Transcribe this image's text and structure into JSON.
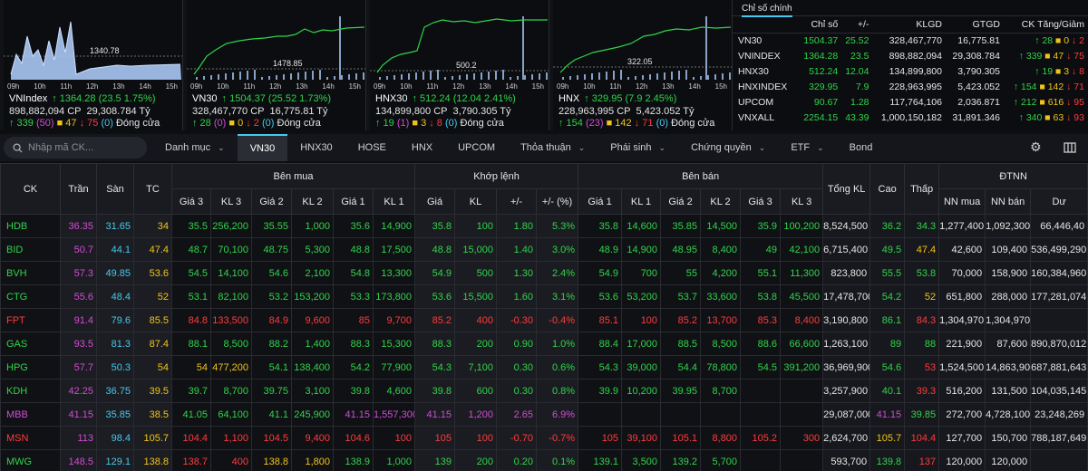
{
  "minis": [
    {
      "name": "VNIndex",
      "price": "1364.28",
      "chg": "(23.5",
      "pct": "1.75%)",
      "vol": "898,882,094 CP",
      "val": "29,308.784 Tỷ",
      "up": "339",
      "ref": "47",
      "down": "75",
      "ceil": "50",
      "mark": "1340.78",
      "times": [
        "09h",
        "10h",
        "11h",
        "12h",
        "13h",
        "14h",
        "15h"
      ],
      "state": "Đóng cửa"
    },
    {
      "name": "VN30",
      "price": "1504.37",
      "chg": "(25.52",
      "pct": "1.73%)",
      "vol": "328,467,770 CP",
      "val": "16,775.81 Tỷ",
      "up": "28",
      "ref": "0",
      "down": "2",
      "ceil": "0",
      "mark": "1478.85",
      "times": [
        "09h",
        "10h",
        "11h",
        "12h",
        "13h",
        "14h",
        "15h"
      ],
      "state": "Đóng cửa"
    },
    {
      "name": "HNX30",
      "price": "512.24",
      "chg": "(12.04",
      "pct": "2.41%)",
      "vol": "134,899,800 CP",
      "val": "3,790.305 Tỷ",
      "up": "19",
      "ref": "3",
      "down": "8",
      "ceil": "1",
      "mark": "500.2",
      "times": [
        "09h",
        "10h",
        "11h",
        "12h",
        "13h",
        "14h",
        "15h"
      ],
      "state": "Đóng cửa"
    },
    {
      "name": "HNX",
      "price": "329.95",
      "chg": "(7.9",
      "pct": "2.45%)",
      "vol": "228,963,995 CP",
      "val": "5,423.052 Tỷ",
      "up": "154",
      "ref": "142",
      "down": "71",
      "ceil": "23",
      "mark": "322.05",
      "times": [
        "09h",
        "10h",
        "11h",
        "12h",
        "13h",
        "14h",
        "15h"
      ],
      "state": "Đóng cửa"
    }
  ],
  "indices": {
    "title": "Chỉ số chính",
    "headers": [
      "Chỉ số",
      "+/-",
      "KLGD",
      "GTGD",
      "CK Tăng/Giảm"
    ],
    "rows": [
      {
        "name": "VN30",
        "val": "1504.37",
        "chg": "25.52",
        "vol": "328,467,770",
        "value": "16,775.81",
        "up": "28",
        "ref": "0",
        "down": "2"
      },
      {
        "name": "VNINDEX",
        "val": "1364.28",
        "chg": "23.5",
        "vol": "898,882,094",
        "value": "29,308.784",
        "up": "339",
        "ref": "47",
        "down": "75"
      },
      {
        "name": "HNX30",
        "val": "512.24",
        "chg": "12.04",
        "vol": "134,899,800",
        "value": "3,790.305",
        "up": "19",
        "ref": "3",
        "down": "8"
      },
      {
        "name": "HNXINDEX",
        "val": "329.95",
        "chg": "7.9",
        "vol": "228,963,995",
        "value": "5,423.052",
        "up": "154",
        "ref": "142",
        "down": "71"
      },
      {
        "name": "UPCOM",
        "val": "90.67",
        "chg": "1.28",
        "vol": "117,764,106",
        "value": "2,036.871",
        "up": "212",
        "ref": "616",
        "down": "95"
      },
      {
        "name": "VNXALL",
        "val": "2254.15",
        "chg": "43.39",
        "vol": "1,000,150,182",
        "value": "31,891.346",
        "up": "340",
        "ref": "63",
        "down": "93"
      }
    ]
  },
  "toolbar": {
    "search_placeholder": "Nhập mã CK...",
    "tabs": [
      {
        "label": "Danh mục",
        "dropdown": true
      },
      {
        "label": "VN30",
        "dropdown": false,
        "active": true
      },
      {
        "label": "HNX30",
        "dropdown": false
      },
      {
        "label": "HOSE",
        "dropdown": false
      },
      {
        "label": "HNX",
        "dropdown": false
      },
      {
        "label": "UPCOM",
        "dropdown": false
      },
      {
        "label": "Thỏa thuận",
        "dropdown": true
      },
      {
        "label": "Phái sinh",
        "dropdown": true
      },
      {
        "label": "Chứng quyền",
        "dropdown": true
      },
      {
        "label": "ETF",
        "dropdown": true
      },
      {
        "label": "Bond",
        "dropdown": false
      }
    ]
  },
  "board": {
    "groups": {
      "ck": "CK",
      "ceil": "Trần",
      "floor": "Sàn",
      "ref": "TC",
      "buy": "Bên mua",
      "match": "Khớp lệnh",
      "sell": "Bên bán",
      "total": "Tổng KL",
      "high": "Cao",
      "low": "Thấp",
      "foreign": "ĐTNN"
    },
    "sub": {
      "buy": [
        "Giá 3",
        "KL 3",
        "Giá 2",
        "KL 2",
        "Giá 1",
        "KL 1"
      ],
      "match": [
        "Giá",
        "KL",
        "+/-",
        "+/- (%)"
      ],
      "sell": [
        "Giá 1",
        "KL 1",
        "Giá 2",
        "KL 2",
        "Giá 3",
        "KL 3"
      ],
      "foreign": [
        "NN mua",
        "NN bán",
        "Dư"
      ]
    },
    "colors": {
      "up": "#2fd44a",
      "down": "#ff3b3b",
      "ref": "#f0c419",
      "ceil": "#d24bd6",
      "floor": "#46c8ee"
    },
    "rows": [
      {
        "ck": "HDB",
        "s": "u",
        "ceil": "36.35",
        "floor": "31.65",
        "ref": "34",
        "b3": [
          "35.5",
          "256,200",
          "u"
        ],
        "b2": [
          "35.55",
          "1,000",
          "u"
        ],
        "b1": [
          "35.6",
          "14,900",
          "u"
        ],
        "m": [
          "35.8",
          "100",
          "1.80",
          "5.3%",
          "u"
        ],
        "s1": [
          "35.8",
          "14,600",
          "u"
        ],
        "s2": [
          "35.85",
          "14,500",
          "u"
        ],
        "s3": [
          "35.9",
          "100,200",
          "u"
        ],
        "tot": "8,524,500",
        "hi": [
          "36.2",
          "u"
        ],
        "lo": [
          "34.3",
          "u"
        ],
        "nnb": "1,277,400",
        "nns": "1,092,300",
        "du": "66,446,40"
      },
      {
        "ck": "BID",
        "s": "u",
        "ceil": "50.7",
        "floor": "44.1",
        "ref": "47.4",
        "b3": [
          "48.7",
          "70,100",
          "u"
        ],
        "b2": [
          "48.75",
          "5,300",
          "u"
        ],
        "b1": [
          "48.8",
          "17,500",
          "u"
        ],
        "m": [
          "48.8",
          "15,000",
          "1.40",
          "3.0%",
          "u"
        ],
        "s1": [
          "48.9",
          "14,900",
          "u"
        ],
        "s2": [
          "48.95",
          "8,400",
          "u"
        ],
        "s3": [
          "49",
          "42,100",
          "u"
        ],
        "tot": "6,715,400",
        "hi": [
          "49.5",
          "u"
        ],
        "lo": [
          "47.4",
          "r"
        ],
        "nnb": "42,600",
        "nns": "109,400",
        "du": "536,499,290"
      },
      {
        "ck": "BVH",
        "s": "u",
        "ceil": "57.3",
        "floor": "49.85",
        "ref": "53.6",
        "b3": [
          "54.5",
          "14,100",
          "u"
        ],
        "b2": [
          "54.6",
          "2,100",
          "u"
        ],
        "b1": [
          "54.8",
          "13,300",
          "u"
        ],
        "m": [
          "54.9",
          "500",
          "1.30",
          "2.4%",
          "u"
        ],
        "s1": [
          "54.9",
          "700",
          "u"
        ],
        "s2": [
          "55",
          "4,200",
          "u"
        ],
        "s3": [
          "55.1",
          "11,300",
          "u"
        ],
        "tot": "823,800",
        "hi": [
          "55.5",
          "u"
        ],
        "lo": [
          "53.8",
          "u"
        ],
        "nnb": "70,000",
        "nns": "158,900",
        "du": "160,384,960"
      },
      {
        "ck": "CTG",
        "s": "u",
        "ceil": "55.6",
        "floor": "48.4",
        "ref": "52",
        "b3": [
          "53.1",
          "82,100",
          "u"
        ],
        "b2": [
          "53.2",
          "153,200",
          "u"
        ],
        "b1": [
          "53.3",
          "173,800",
          "u"
        ],
        "m": [
          "53.6",
          "15,500",
          "1.60",
          "3.1%",
          "u"
        ],
        "s1": [
          "53.6",
          "53,200",
          "u"
        ],
        "s2": [
          "53.7",
          "33,600",
          "u"
        ],
        "s3": [
          "53.8",
          "45,500",
          "u"
        ],
        "tot": "17,478,700",
        "hi": [
          "54.2",
          "u"
        ],
        "lo": [
          "52",
          "r"
        ],
        "nnb": "651,800",
        "nns": "288,000",
        "du": "177,281,074"
      },
      {
        "ck": "FPT",
        "s": "d",
        "ceil": "91.4",
        "floor": "79.6",
        "ref": "85.5",
        "b3": [
          "84.8",
          "133,500",
          "d"
        ],
        "b2": [
          "84.9",
          "9,600",
          "d"
        ],
        "b1": [
          "85",
          "9,700",
          "d"
        ],
        "m": [
          "85.2",
          "400",
          "-0.30",
          "-0.4%",
          "d"
        ],
        "s1": [
          "85.1",
          "100",
          "d"
        ],
        "s2": [
          "85.2",
          "13,700",
          "d"
        ],
        "s3": [
          "85.3",
          "8,400",
          "d"
        ],
        "tot": "3,190,800",
        "hi": [
          "86.1",
          "u"
        ],
        "lo": [
          "84.3",
          "d"
        ],
        "nnb": "1,304,970",
        "nns": "1,304,970",
        "du": ""
      },
      {
        "ck": "GAS",
        "s": "u",
        "ceil": "93.5",
        "floor": "81.3",
        "ref": "87.4",
        "b3": [
          "88.1",
          "8,500",
          "u"
        ],
        "b2": [
          "88.2",
          "1,400",
          "u"
        ],
        "b1": [
          "88.3",
          "15,300",
          "u"
        ],
        "m": [
          "88.3",
          "200",
          "0.90",
          "1.0%",
          "u"
        ],
        "s1": [
          "88.4",
          "17,000",
          "u"
        ],
        "s2": [
          "88.5",
          "8,500",
          "u"
        ],
        "s3": [
          "88.6",
          "66,600",
          "u"
        ],
        "tot": "1,263,100",
        "hi": [
          "89",
          "u"
        ],
        "lo": [
          "88",
          "u"
        ],
        "nnb": "221,900",
        "nns": "87,600",
        "du": "890,870,012"
      },
      {
        "ck": "HPG",
        "s": "u",
        "ceil": "57.7",
        "floor": "50.3",
        "ref": "54",
        "b3": [
          "54",
          "477,200",
          "r"
        ],
        "b2": [
          "54.1",
          "138,400",
          "u"
        ],
        "b1": [
          "54.2",
          "77,900",
          "u"
        ],
        "m": [
          "54.3",
          "7,100",
          "0.30",
          "0.6%",
          "u"
        ],
        "s1": [
          "54.3",
          "39,000",
          "u"
        ],
        "s2": [
          "54.4",
          "78,800",
          "u"
        ],
        "s3": [
          "54.5",
          "391,200",
          "u"
        ],
        "tot": "36,969,900",
        "hi": [
          "54.6",
          "u"
        ],
        "lo": [
          "53",
          "d"
        ],
        "nnb": "1,524,500",
        "nns": "14,863,900",
        "du": "687,881,643"
      },
      {
        "ck": "KDH",
        "s": "u",
        "ceil": "42.25",
        "floor": "36.75",
        "ref": "39.5",
        "b3": [
          "39.7",
          "8,700",
          "u"
        ],
        "b2": [
          "39.75",
          "3,100",
          "u"
        ],
        "b1": [
          "39.8",
          "4,600",
          "u"
        ],
        "m": [
          "39.8",
          "600",
          "0.30",
          "0.8%",
          "u"
        ],
        "s1": [
          "39.9",
          "10,200",
          "u"
        ],
        "s2": [
          "39.95",
          "8,700",
          "u"
        ],
        "s3": [
          "",
          "",
          ""
        ],
        "tot": "3,257,900",
        "hi": [
          "40.1",
          "u"
        ],
        "lo": [
          "39.3",
          "d"
        ],
        "nnb": "516,200",
        "nns": "131,500",
        "du": "104,035,145"
      },
      {
        "ck": "MBB",
        "s": "c",
        "ceil": "41.15",
        "floor": "35.85",
        "ref": "38.5",
        "b3": [
          "41.05",
          "64,100",
          "u"
        ],
        "b2": [
          "41.1",
          "245,900",
          "u"
        ],
        "b1": [
          "41.15",
          "1,557,300",
          "c"
        ],
        "m": [
          "41.15",
          "1,200",
          "2.65",
          "6.9%",
          "c"
        ],
        "s1": [
          "",
          "",
          ""
        ],
        "s2": [
          "",
          "",
          ""
        ],
        "s3": [
          "",
          "",
          ""
        ],
        "tot": "29,087,000",
        "hi": [
          "41.15",
          "c"
        ],
        "lo": [
          "39.85",
          "u"
        ],
        "nnb": "272,700",
        "nns": "4,728,100",
        "du": "23,248,269"
      },
      {
        "ck": "MSN",
        "s": "d",
        "ceil": "113",
        "floor": "98.4",
        "ref": "105.7",
        "b3": [
          "104.4",
          "1,100",
          "d"
        ],
        "b2": [
          "104.5",
          "9,400",
          "d"
        ],
        "b1": [
          "104.6",
          "100",
          "d"
        ],
        "m": [
          "105",
          "100",
          "-0.70",
          "-0.7%",
          "d"
        ],
        "s1": [
          "105",
          "39,100",
          "d"
        ],
        "s2": [
          "105.1",
          "8,800",
          "d"
        ],
        "s3": [
          "105.2",
          "300",
          "d"
        ],
        "tot": "2,624,700",
        "hi": [
          "105.7",
          "r"
        ],
        "lo": [
          "104.4",
          "d"
        ],
        "nnb": "127,700",
        "nns": "150,700",
        "du": "788,187,649"
      },
      {
        "ck": "MWG",
        "s": "u",
        "ceil": "148.5",
        "floor": "129.1",
        "ref": "138.8",
        "b3": [
          "138.7",
          "400",
          "d"
        ],
        "b2": [
          "138.8",
          "1,800",
          "r"
        ],
        "b1": [
          "138.9",
          "1,000",
          "u"
        ],
        "m": [
          "139",
          "200",
          "0.20",
          "0.1%",
          "u"
        ],
        "s1": [
          "139.1",
          "3,500",
          "u"
        ],
        "s2": [
          "139.2",
          "5,700",
          "u"
        ],
        "s3": [
          "",
          "",
          ""
        ],
        "tot": "593,700",
        "hi": [
          "139.8",
          "u"
        ],
        "lo": [
          "137",
          "d"
        ],
        "nnb": "120,000",
        "nns": "120,000",
        "du": ""
      }
    ]
  }
}
